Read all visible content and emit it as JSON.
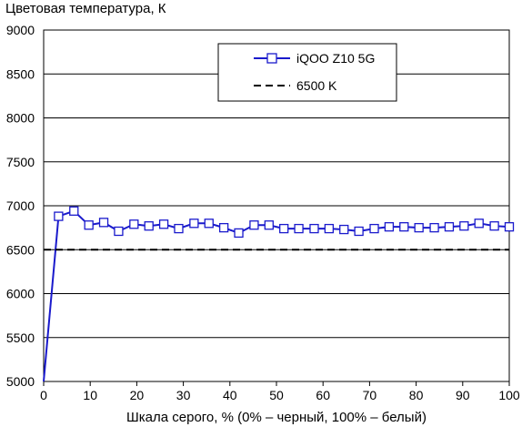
{
  "chart_data": {
    "type": "line",
    "title": "Цветовая температура, К",
    "xlabel": "Шкала серого, % (0% – черный, 100% – белый)",
    "ylabel": "",
    "xlim": [
      0,
      100
    ],
    "ylim": [
      5000,
      9000
    ],
    "xticks": [
      0,
      10,
      20,
      30,
      40,
      50,
      60,
      70,
      80,
      90,
      100
    ],
    "yticks": [
      5000,
      5500,
      6000,
      6500,
      7000,
      7500,
      8000,
      8500,
      9000
    ],
    "grid": "horizontal",
    "legend_position": "top-right",
    "series": [
      {
        "name": "iQOO Z10 5G",
        "color": "#1a1acc",
        "marker": "square",
        "x": [
          0,
          3.2,
          6.5,
          9.7,
          12.9,
          16.1,
          19.4,
          22.6,
          25.8,
          29.0,
          32.3,
          35.5,
          38.7,
          41.9,
          45.2,
          48.4,
          51.6,
          54.8,
          58.1,
          61.3,
          64.5,
          67.7,
          71.0,
          74.2,
          77.4,
          80.6,
          83.9,
          87.1,
          90.3,
          93.5,
          96.8,
          100
        ],
        "y": [
          5000,
          6880,
          6940,
          6780,
          6810,
          6710,
          6790,
          6770,
          6790,
          6740,
          6800,
          6800,
          6750,
          6690,
          6780,
          6780,
          6740,
          6740,
          6740,
          6740,
          6730,
          6710,
          6740,
          6760,
          6760,
          6750,
          6750,
          6760,
          6770,
          6800,
          6770,
          6760
        ]
      },
      {
        "name": "6500 K",
        "color": "#000000",
        "style": "dashed",
        "x": [
          0,
          100
        ],
        "y": [
          6500,
          6500
        ]
      }
    ]
  }
}
